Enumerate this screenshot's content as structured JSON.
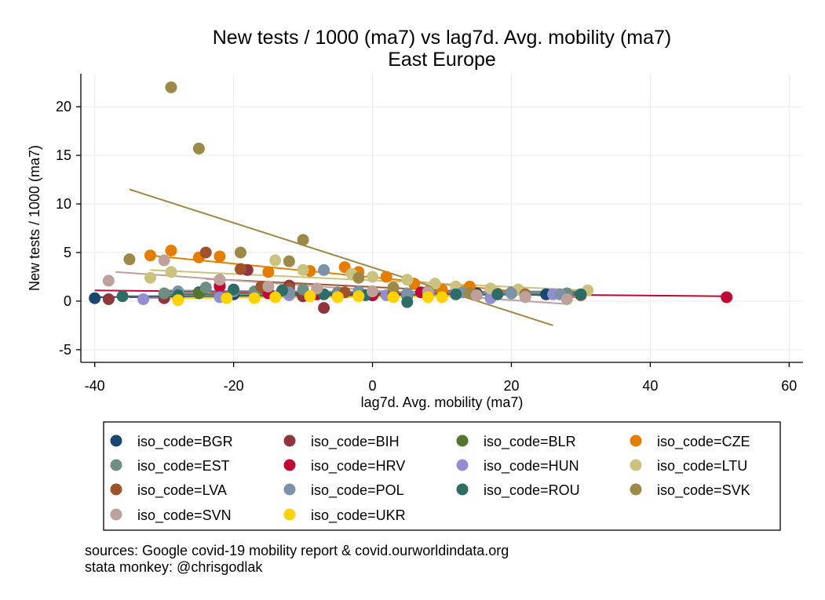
{
  "chart_data": {
    "type": "scatter",
    "title": "New tests / 1000 (ma7) vs lag7d. Avg. mobility (ma7)",
    "subtitle": "East Europe",
    "xlabel": "lag7d. Avg. mobility (ma7)",
    "ylabel": "New tests / 1000 (ma7)",
    "xlim": [
      -42,
      62
    ],
    "ylim": [
      -6.3,
      23.4
    ],
    "xticks": [
      "-40",
      "-20",
      "0",
      "20",
      "40",
      "60"
    ],
    "xtick_values": [
      -40,
      -20,
      0,
      20,
      40,
      60
    ],
    "yticks": [
      "-5",
      "0",
      "5",
      "10",
      "15",
      "20"
    ],
    "ytick_values": [
      -5,
      0,
      5,
      10,
      15,
      20
    ],
    "grid": true,
    "legend_position": "bottom",
    "notes": [
      "sources: Google covid-19 mobility report & covid.ourworldindata.org",
      "stata monkey: @chrisgodlak"
    ],
    "series": [
      {
        "name": "iso_code=BGR",
        "color": "#1a476f",
        "points": [
          [
            -40,
            0.3
          ],
          [
            -28,
            0.3
          ],
          [
            -25,
            0.9
          ],
          [
            -20,
            0.7
          ],
          [
            -15,
            0.8
          ],
          [
            -10,
            0.5
          ],
          [
            -5,
            0.6
          ],
          [
            0,
            0.6
          ],
          [
            5,
            0.7
          ],
          [
            10,
            0.8
          ],
          [
            15,
            0.8
          ],
          [
            25,
            0.7
          ]
        ],
        "fit": [
          [
            -40,
            0.4
          ],
          [
            30,
            0.9
          ]
        ]
      },
      {
        "name": "iso_code=BIH",
        "color": "#90353b",
        "points": [
          [
            -38,
            0.2
          ],
          [
            -30,
            0.3
          ],
          [
            -22,
            1.5
          ],
          [
            -18,
            3.2
          ],
          [
            -12,
            1.6
          ],
          [
            -10,
            0.5
          ],
          [
            -7,
            -0.7
          ],
          [
            -5,
            0.5
          ],
          [
            0,
            0.8
          ],
          [
            5,
            0.5
          ]
        ],
        "fit": [
          [
            -35,
            0.4
          ],
          [
            10,
            0.7
          ]
        ]
      },
      {
        "name": "iso_code=BLR",
        "color": "#55752f",
        "points": [
          [
            -25,
            0.8
          ],
          [
            -15,
            0.9
          ],
          [
            -5,
            0.8
          ],
          [
            0,
            0.9
          ],
          [
            10,
            0.8
          ],
          [
            20,
            0.8
          ]
        ],
        "fit": [
          [
            -30,
            0.7
          ],
          [
            25,
            0.9
          ]
        ]
      },
      {
        "name": "iso_code=CZE",
        "color": "#e37e00",
        "points": [
          [
            -32,
            4.7
          ],
          [
            -29,
            5.2
          ],
          [
            -25,
            4.5
          ],
          [
            -22,
            4.6
          ],
          [
            -15,
            3.0
          ],
          [
            -9,
            3.1
          ],
          [
            -4,
            3.5
          ],
          [
            -2,
            3.0
          ],
          [
            2,
            2.5
          ],
          [
            6,
            1.8
          ],
          [
            10,
            1.2
          ],
          [
            14,
            1.5
          ],
          [
            18,
            0.8
          ]
        ],
        "fit": [
          [
            -32,
            4.7
          ],
          [
            22,
            0.9
          ]
        ]
      },
      {
        "name": "iso_code=EST",
        "color": "#6e8e84",
        "points": [
          [
            -30,
            0.8
          ],
          [
            -24,
            1.4
          ],
          [
            -17,
            1.0
          ],
          [
            -10,
            1.2
          ],
          [
            -5,
            0.9
          ],
          [
            0,
            1.0
          ],
          [
            5,
            0.6
          ],
          [
            12,
            1.0
          ],
          [
            20,
            0.9
          ],
          [
            28,
            0.8
          ]
        ],
        "fit": [
          [
            -30,
            0.9
          ],
          [
            30,
            1.0
          ]
        ]
      },
      {
        "name": "iso_code=HRV",
        "color": "#c10534",
        "points": [
          [
            -22,
            1.6
          ],
          [
            -15,
            0.8
          ],
          [
            -8,
            0.7
          ],
          [
            0,
            0.6
          ],
          [
            7,
            0.9
          ],
          [
            15,
            0.6
          ],
          [
            51,
            0.4
          ]
        ],
        "fit": [
          [
            -40,
            1.1
          ],
          [
            51,
            0.5
          ]
        ]
      },
      {
        "name": "iso_code=HUN",
        "color": "#938dd2",
        "points": [
          [
            -33,
            0.2
          ],
          [
            -22,
            0.4
          ],
          [
            -12,
            0.6
          ],
          [
            -5,
            0.5
          ],
          [
            2,
            0.6
          ],
          [
            12,
            0.8
          ],
          [
            17,
            0.3
          ],
          [
            26,
            0.7
          ]
        ],
        "fit": [
          [
            -33,
            0.3
          ],
          [
            28,
            0.8
          ]
        ]
      },
      {
        "name": "iso_code=LTU",
        "color": "#cac27e",
        "points": [
          [
            -32,
            2.4
          ],
          [
            -29,
            3.0
          ],
          [
            -14,
            4.2
          ],
          [
            -10,
            3.2
          ],
          [
            -3,
            2.8
          ],
          [
            0,
            2.5
          ],
          [
            5,
            2.2
          ],
          [
            9,
            1.8
          ],
          [
            12,
            1.5
          ],
          [
            17,
            1.3
          ],
          [
            21,
            1.2
          ],
          [
            31,
            1.1
          ]
        ],
        "fit": [
          [
            -32,
            3.2
          ],
          [
            31,
            1.1
          ]
        ]
      },
      {
        "name": "iso_code=LVA",
        "color": "#a0522d",
        "points": [
          [
            -24,
            5.0
          ],
          [
            -19,
            3.3
          ],
          [
            -16,
            1.5
          ],
          [
            -12,
            1.3
          ],
          [
            -8,
            1.2
          ],
          [
            -4,
            0.9
          ],
          [
            3,
            0.8
          ],
          [
            8,
            0.7
          ],
          [
            14,
            0.8
          ],
          [
            22,
            0.7
          ],
          [
            30,
            0.6
          ]
        ],
        "fit": [
          [
            -24,
            2.3
          ],
          [
            30,
            0.4
          ]
        ]
      },
      {
        "name": "iso_code=POL",
        "color": "#7b92a8",
        "points": [
          [
            -28,
            1.0
          ],
          [
            -20,
            1.0
          ],
          [
            -12,
            0.9
          ],
          [
            -7,
            3.2
          ],
          [
            -2,
            1.0
          ],
          [
            5,
            0.8
          ],
          [
            13,
            0.9
          ],
          [
            20,
            0.8
          ],
          [
            27,
            0.7
          ]
        ],
        "fit": [
          [
            -30,
            1.1
          ],
          [
            28,
            0.8
          ]
        ]
      },
      {
        "name": "iso_code=ROU",
        "color": "#2d6d66",
        "points": [
          [
            -36,
            0.5
          ],
          [
            -28,
            0.6
          ],
          [
            -20,
            1.2
          ],
          [
            -13,
            1.1
          ],
          [
            -7,
            0.7
          ],
          [
            -1,
            0.6
          ],
          [
            5,
            -0.1
          ],
          [
            12,
            0.7
          ],
          [
            18,
            0.7
          ],
          [
            30,
            0.7
          ]
        ],
        "fit": [
          [
            -36,
            0.5
          ],
          [
            30,
            0.7
          ]
        ]
      },
      {
        "name": "iso_code=SVK",
        "color": "#9c8847",
        "points": [
          [
            -29,
            22.0
          ],
          [
            -25,
            15.7
          ],
          [
            -35,
            4.3
          ],
          [
            -19,
            5.0
          ],
          [
            -12,
            4.1
          ],
          [
            -10,
            6.3
          ],
          [
            -2,
            2.4
          ],
          [
            3,
            1.4
          ],
          [
            8,
            1.0
          ],
          [
            14,
            0.8
          ],
          [
            22,
            0.6
          ]
        ],
        "fit": [
          [
            -35,
            11.5
          ],
          [
            26,
            -2.5
          ]
        ]
      },
      {
        "name": "iso_code=SVN",
        "color": "#bfa19c",
        "points": [
          [
            -38,
            2.1
          ],
          [
            -30,
            4.2
          ],
          [
            -22,
            2.2
          ],
          [
            -15,
            1.5
          ],
          [
            -8,
            1.3
          ],
          [
            0,
            1.0
          ],
          [
            8,
            0.9
          ],
          [
            15,
            0.6
          ],
          [
            22,
            0.4
          ],
          [
            28,
            0.2
          ]
        ],
        "fit": [
          [
            -37,
            3.0
          ],
          [
            28,
            -0.3
          ]
        ]
      },
      {
        "name": "iso_code=UKR",
        "color": "#ffd200",
        "points": [
          [
            -28,
            0.1
          ],
          [
            -21,
            0.3
          ],
          [
            -17,
            0.3
          ],
          [
            -14,
            0.4
          ],
          [
            -9,
            0.5
          ],
          [
            -5,
            0.4
          ],
          [
            -2,
            0.5
          ],
          [
            3,
            0.4
          ],
          [
            8,
            0.4
          ],
          [
            10,
            0.4
          ]
        ],
        "fit": [
          [
            -30,
            0.3
          ],
          [
            12,
            0.5
          ]
        ]
      }
    ]
  }
}
